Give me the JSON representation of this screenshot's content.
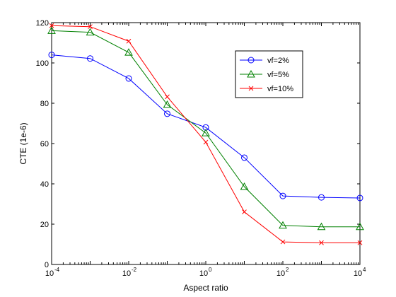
{
  "chart_data": {
    "type": "line",
    "xscale": "log",
    "x": [
      0.0001,
      0.001,
      0.01,
      0.1,
      1,
      10,
      100,
      1000,
      10000
    ],
    "xlim": [
      0.0001,
      10000
    ],
    "xticks": [
      {
        "value": 0.0001,
        "base": "10",
        "exp": "-4"
      },
      {
        "value": 0.01,
        "base": "10",
        "exp": "-2"
      },
      {
        "value": 1,
        "base": "10",
        "exp": "0"
      },
      {
        "value": 100,
        "base": "10",
        "exp": "2"
      },
      {
        "value": 10000,
        "base": "10",
        "exp": "4"
      }
    ],
    "ylim": [
      0,
      120
    ],
    "yticks": [
      0,
      20,
      40,
      60,
      80,
      100,
      120
    ],
    "xlabel": "Aspect ratio",
    "ylabel": "CTE (1e-6)",
    "grid": false,
    "legend_position": "top-right",
    "series": [
      {
        "name": "vf=2%",
        "color": "#0000ff",
        "marker": "circle",
        "values": [
          104,
          102.2,
          92.3,
          74.8,
          68.0,
          53.0,
          34.0,
          33.3,
          33.0
        ]
      },
      {
        "name": "vf=5%",
        "color": "#008000",
        "marker": "triangle",
        "values": [
          116,
          115.2,
          105.2,
          79.3,
          65.2,
          38.6,
          19.4,
          18.7,
          18.7
        ]
      },
      {
        "name": "vf=10%",
        "color": "#ff0000",
        "marker": "x",
        "values": [
          118.5,
          118,
          110.8,
          83.2,
          60.7,
          26.1,
          11.2,
          10.8,
          10.8
        ]
      }
    ]
  }
}
